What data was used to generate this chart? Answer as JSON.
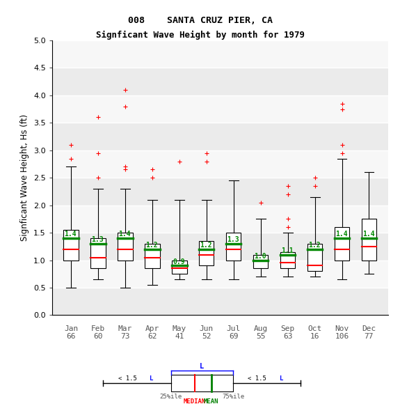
{
  "title1": "008    SANTA CRUZ PIER, CA",
  "title2": "Signficant Wave Height by month for 1979",
  "ylabel": "Signficant Wave Height, Hs (ft)",
  "ylim": [
    0.0,
    5.0
  ],
  "yticks": [
    0.0,
    0.5,
    1.0,
    1.5,
    2.0,
    2.5,
    3.0,
    3.5,
    4.0,
    4.5,
    5.0
  ],
  "months": [
    "Jan",
    "Feb",
    "Mar",
    "Apr",
    "May",
    "Jun",
    "Jul",
    "Aug",
    "Sep",
    "Oct",
    "Nov",
    "Dec"
  ],
  "counts": [
    66,
    60,
    73,
    62,
    41,
    52,
    69,
    55,
    63,
    16,
    106,
    77
  ],
  "means": [
    1.4,
    1.3,
    1.4,
    1.2,
    0.9,
    1.2,
    1.3,
    1.0,
    1.1,
    1.2,
    1.4,
    1.4
  ],
  "medians": [
    1.2,
    1.05,
    1.2,
    1.05,
    0.85,
    1.1,
    1.2,
    1.0,
    0.95,
    0.9,
    1.2,
    1.25
  ],
  "q1": [
    1.0,
    0.85,
    1.0,
    0.85,
    0.75,
    0.9,
    1.0,
    0.85,
    0.85,
    0.8,
    1.0,
    1.0
  ],
  "q3": [
    1.55,
    1.4,
    1.5,
    1.3,
    1.0,
    1.35,
    1.5,
    1.1,
    1.15,
    1.3,
    1.6,
    1.75
  ],
  "whislo": [
    0.5,
    0.65,
    0.5,
    0.55,
    0.65,
    0.65,
    0.65,
    0.7,
    0.7,
    0.7,
    0.65,
    0.75
  ],
  "whishi": [
    2.7,
    2.3,
    2.3,
    2.1,
    2.1,
    2.1,
    2.45,
    1.75,
    1.5,
    2.15,
    2.85,
    2.6
  ],
  "fliers": [
    [
      2.85,
      3.1
    ],
    [
      2.5,
      2.95,
      3.6
    ],
    [
      2.65,
      2.7,
      3.8,
      4.1
    ],
    [
      2.5,
      2.65
    ],
    [
      2.8
    ],
    [
      2.8,
      2.95
    ],
    [],
    [
      2.05
    ],
    [
      1.75,
      1.6,
      2.2,
      2.35
    ],
    [
      2.5,
      2.35
    ],
    [
      2.95,
      3.1,
      3.85,
      3.75
    ],
    []
  ],
  "box_color": "#000000",
  "median_color": "#ff0000",
  "mean_color": "#008800",
  "flier_color": "#ff0000",
  "band_colors": [
    "#ebebeb",
    "#f7f7f7"
  ],
  "grid_color": "#ffffff",
  "box_width": 0.55
}
